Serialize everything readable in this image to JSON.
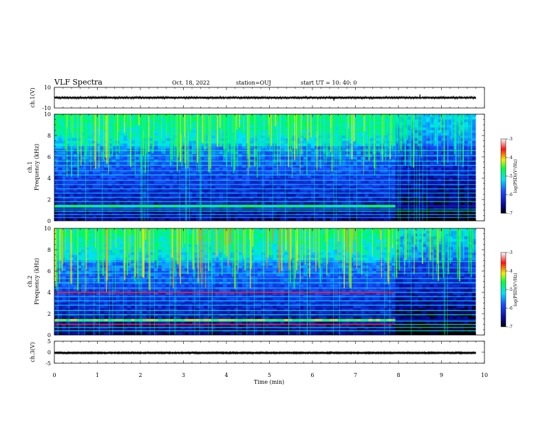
{
  "header": {
    "title": "VLF Spectra",
    "date": "Oct. 18, 2022",
    "station": "station=OUJ",
    "start_time": "start  UT =   10: 40: 0"
  },
  "chart_data": [
    {
      "type": "line",
      "panel": "ch.1 waveform",
      "ylabel": "ch.1(V)",
      "ylim": [
        -10,
        10
      ],
      "ytick_labels": [
        "10",
        "-10"
      ],
      "xlim": [
        0,
        10
      ],
      "data_end_min": 9.8,
      "baseline": 0,
      "amplitude_typical": 0.8,
      "spikes": [
        {
          "x": 6.5,
          "ymin": -3.0,
          "ymax": 1.0
        },
        {
          "x": 8.5,
          "ymin": -0.5,
          "ymax": 3.2
        }
      ],
      "color": "#000000"
    },
    {
      "type": "heatmap",
      "panel": "ch.1 spectrogram",
      "ylabel": "ch.1\nFrequency (kHz)",
      "ylabel_lines": [
        "ch.1",
        "Frequency  (kHz)"
      ],
      "ylim": [
        0,
        10
      ],
      "ytick_labels": [
        "0",
        "2",
        "4",
        "6",
        "8",
        "10"
      ],
      "xlim": [
        0,
        10
      ],
      "data_end_min": 9.8,
      "quiet_after_min": 7.9,
      "colorbar": {
        "label": "log(PSD)(V²/Hz)",
        "range": [
          -7,
          -3
        ],
        "tick_labels": [
          "-3",
          "-4",
          "-5",
          "-6",
          "-7"
        ]
      },
      "strong_band_khz": [
        1.2,
        1.5
      ],
      "strong_band_level": -4.8,
      "hiss_top_khz": 10,
      "spheric_level": -4.5,
      "line_khz": [
        0.3,
        0.6,
        0.9,
        1.1,
        1.8,
        2.2,
        2.6,
        3.0,
        3.4,
        3.8,
        4.3,
        4.7,
        5.2,
        5.6,
        6.1,
        6.6
      ]
    },
    {
      "type": "heatmap",
      "panel": "ch.2 spectrogram",
      "ylabel_lines": [
        "ch.2",
        "Frequency  (kHz)"
      ],
      "ylim": [
        0,
        10
      ],
      "ytick_labels": [
        "0",
        "2",
        "4",
        "6",
        "8",
        "10"
      ],
      "xlim": [
        0,
        10
      ],
      "data_end_min": 9.8,
      "quiet_after_min": 7.9,
      "colorbar": {
        "label": "log(PSD)(V²/Hz)",
        "range": [
          -7,
          -3
        ],
        "tick_labels": [
          "-3",
          "-4",
          "-5",
          "-6",
          "-7"
        ]
      },
      "strong_band_khz": [
        1.2,
        1.6
      ],
      "strong_band_level": -4.3,
      "red_line_khz": [
        4.0,
        1.0
      ],
      "hiss_top_khz": 10,
      "spheric_level": -4.3,
      "line_khz": [
        0.4,
        0.7,
        1.0,
        1.3,
        1.9,
        2.3,
        2.8,
        3.2,
        3.6,
        4.0,
        4.4,
        4.9,
        5.3,
        5.8,
        6.3,
        6.9
      ]
    },
    {
      "type": "line",
      "panel": "ch.3 waveform",
      "ylabel": "ch.3(V)",
      "ylim": [
        -5,
        5
      ],
      "ytick_labels": [
        "5",
        "0",
        "-5"
      ],
      "xlim": [
        0,
        10
      ],
      "data_end_min": 9.8,
      "baseline": 0.3,
      "amplitude_typical": 0.25,
      "color": "#000000"
    }
  ],
  "xaxis": {
    "label": "Time  (min)",
    "range": [
      0,
      10
    ],
    "tick_labels": [
      "0",
      "1",
      "2",
      "3",
      "4",
      "5",
      "6",
      "7",
      "8",
      "9",
      "10"
    ]
  }
}
